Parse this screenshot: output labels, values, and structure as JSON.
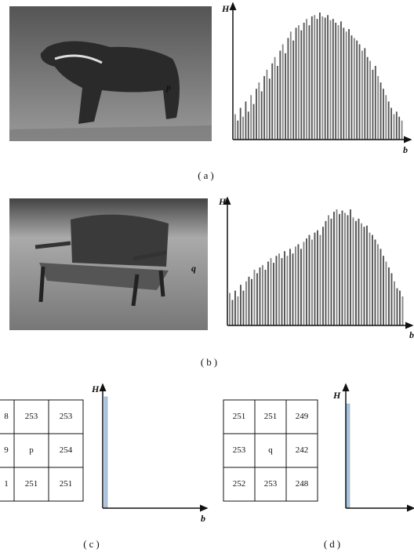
{
  "panels": [
    {
      "caption": "(a)",
      "point_label": "p",
      "y_label": "H",
      "x_label": "b",
      "values": [
        20,
        15,
        25,
        18,
        30,
        22,
        35,
        28,
        40,
        45,
        38,
        50,
        55,
        48,
        60,
        65,
        58,
        70,
        75,
        68,
        80,
        85,
        78,
        88,
        90,
        86,
        92,
        95,
        90,
        97,
        98,
        95,
        100,
        97,
        96,
        98,
        94,
        95,
        92,
        90,
        93,
        88,
        85,
        87,
        82,
        80,
        78,
        75,
        70,
        72,
        65,
        62,
        55,
        58,
        50,
        45,
        40,
        35,
        30,
        25,
        20,
        22,
        18,
        15
      ]
    },
    {
      "caption": "(b)",
      "point_label": "q",
      "y_label": "H",
      "x_label": "b",
      "values": [
        28,
        22,
        30,
        25,
        35,
        30,
        38,
        42,
        40,
        48,
        45,
        50,
        52,
        48,
        55,
        58,
        54,
        60,
        62,
        58,
        64,
        60,
        66,
        62,
        68,
        70,
        66,
        72,
        75,
        78,
        74,
        80,
        82,
        78,
        85,
        90,
        95,
        92,
        98,
        100,
        96,
        99,
        97,
        95,
        100,
        93,
        90,
        92,
        88,
        85,
        86,
        80,
        78,
        74,
        70,
        66,
        60,
        55,
        50,
        45,
        38,
        32,
        30,
        25
      ]
    },
    {
      "caption": "(c)",
      "y_label": "H",
      "x_label": "b",
      "spike": 100,
      "table": [
        [
          "8",
          253,
          253
        ],
        [
          "9",
          "p",
          254
        ],
        [
          "1",
          251,
          251
        ]
      ]
    },
    {
      "caption": "(d)",
      "y_label": "H",
      "spike": 100,
      "table": [
        [
          251,
          251,
          249
        ],
        [
          253,
          "q",
          242
        ],
        [
          252,
          253,
          248
        ]
      ]
    }
  ]
}
